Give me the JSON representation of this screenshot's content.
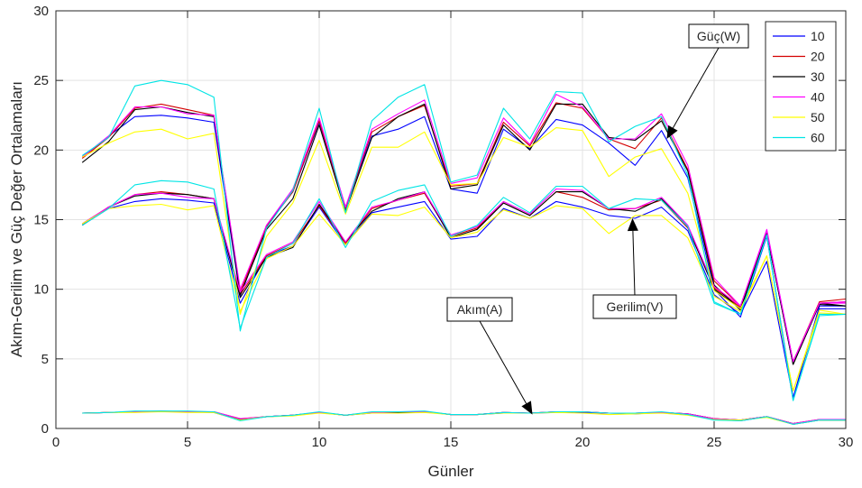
{
  "chart_data": {
    "type": "line",
    "xlabel": "Günler",
    "ylabel": "Akım-Gerilim ve Güç Değer Ortalamaları",
    "xlim": [
      0,
      30
    ],
    "ylim": [
      0,
      30
    ],
    "xticks": [
      0,
      5,
      10,
      15,
      20,
      25,
      30
    ],
    "yticks": [
      0,
      5,
      10,
      15,
      20,
      25,
      30
    ],
    "grid": true,
    "legend_position": "top-right",
    "x": [
      1,
      2,
      3,
      4,
      5,
      6,
      7,
      8,
      9,
      10,
      11,
      12,
      13,
      14,
      15,
      16,
      17,
      18,
      19,
      20,
      21,
      22,
      23,
      24,
      25,
      26,
      27,
      28,
      29,
      30
    ],
    "series": [
      {
        "name": "10",
        "color": "#0000ff",
        "power": [
          19.5,
          21.0,
          22.4,
          22.5,
          22.3,
          22.0,
          9.5,
          14.6,
          17.0,
          22.0,
          15.9,
          21.0,
          21.5,
          22.4,
          17.2,
          16.9,
          21.5,
          20.1,
          22.2,
          21.8,
          20.5,
          18.9,
          21.4,
          18.0,
          10.0,
          8.0,
          13.8,
          2.2,
          8.8,
          8.8
        ],
        "voltage": [
          14.6,
          15.8,
          16.3,
          16.5,
          16.4,
          16.2,
          9.0,
          12.4,
          13.1,
          15.9,
          13.2,
          15.5,
          15.9,
          16.3,
          13.6,
          13.8,
          15.8,
          15.1,
          16.3,
          15.9,
          15.3,
          15.1,
          15.9,
          14.2,
          9.6,
          8.2,
          12.0,
          2.2,
          8.6,
          8.6
        ],
        "current": [
          1.1,
          1.15,
          1.2,
          1.2,
          1.2,
          1.15,
          0.6,
          0.85,
          0.95,
          1.15,
          0.95,
          1.1,
          1.15,
          1.2,
          1.0,
          1.0,
          1.1,
          1.1,
          1.15,
          1.15,
          1.1,
          1.05,
          1.15,
          1.0,
          0.65,
          0.55,
          0.85,
          0.3,
          0.6,
          0.6
        ]
      },
      {
        "name": "20",
        "color": "#d40000",
        "power": [
          19.4,
          20.9,
          23.0,
          23.3,
          22.9,
          22.5,
          9.8,
          14.5,
          17.0,
          22.1,
          15.8,
          21.3,
          22.4,
          23.2,
          17.4,
          17.6,
          22.0,
          20.3,
          23.4,
          23.0,
          20.8,
          20.1,
          22.3,
          18.6,
          10.6,
          8.8,
          14.0,
          4.8,
          9.1,
          9.3
        ],
        "voltage": [
          14.7,
          15.9,
          16.8,
          17.0,
          16.8,
          16.5,
          9.6,
          12.4,
          13.3,
          16.0,
          13.3,
          15.8,
          16.4,
          16.9,
          13.8,
          14.4,
          16.2,
          15.3,
          17.0,
          16.6,
          15.7,
          15.8,
          16.4,
          14.4,
          10.1,
          8.7,
          14.0,
          4.8,
          9.0,
          9.1
        ],
        "current": [
          1.1,
          1.15,
          1.2,
          1.25,
          1.2,
          1.2,
          0.7,
          0.85,
          0.95,
          1.15,
          0.95,
          1.15,
          1.2,
          1.2,
          1.0,
          1.0,
          1.15,
          1.1,
          1.2,
          1.2,
          1.1,
          1.1,
          1.15,
          1.05,
          0.7,
          0.6,
          0.85,
          0.35,
          0.65,
          0.65
        ]
      },
      {
        "name": "30",
        "color": "#000000",
        "power": [
          19.1,
          20.6,
          22.9,
          23.1,
          22.7,
          22.4,
          9.6,
          14.3,
          16.5,
          21.8,
          15.6,
          20.9,
          22.4,
          23.3,
          17.2,
          17.5,
          21.8,
          20.0,
          23.3,
          23.3,
          20.9,
          20.7,
          22.1,
          18.5,
          10.3,
          8.5,
          14.0,
          4.6,
          9.0,
          8.8
        ],
        "voltage": [
          14.6,
          15.9,
          16.7,
          16.9,
          16.8,
          16.5,
          9.4,
          12.3,
          13.0,
          16.1,
          13.4,
          15.6,
          16.5,
          17.0,
          13.7,
          14.3,
          16.2,
          15.3,
          17.0,
          17.0,
          15.8,
          15.6,
          16.5,
          14.5,
          10.0,
          8.6,
          14.0,
          4.6,
          8.9,
          8.8
        ],
        "current": [
          1.1,
          1.15,
          1.2,
          1.2,
          1.2,
          1.2,
          0.65,
          0.85,
          0.95,
          1.15,
          0.95,
          1.15,
          1.15,
          1.2,
          1.0,
          1.0,
          1.15,
          1.1,
          1.2,
          1.2,
          1.1,
          1.1,
          1.15,
          1.05,
          0.7,
          0.6,
          0.85,
          0.35,
          0.6,
          0.6
        ]
      },
      {
        "name": "40",
        "color": "#ff00ff",
        "power": [
          19.5,
          21.0,
          23.1,
          23.1,
          22.6,
          22.5,
          10.0,
          14.6,
          17.2,
          22.3,
          15.9,
          21.5,
          22.6,
          23.6,
          17.6,
          18.0,
          22.3,
          20.4,
          24.0,
          23.1,
          20.8,
          20.8,
          22.6,
          18.9,
          10.8,
          8.8,
          14.3,
          4.8,
          9.0,
          9.1
        ],
        "voltage": [
          14.7,
          15.9,
          16.8,
          16.9,
          16.6,
          16.5,
          9.8,
          12.5,
          13.4,
          16.3,
          13.4,
          15.9,
          16.4,
          17.0,
          13.9,
          14.5,
          16.3,
          15.4,
          17.2,
          17.1,
          15.8,
          15.8,
          16.6,
          14.6,
          10.2,
          8.8,
          14.2,
          4.8,
          9.0,
          9.0
        ],
        "current": [
          1.1,
          1.15,
          1.2,
          1.2,
          1.2,
          1.2,
          0.7,
          0.85,
          0.95,
          1.15,
          0.95,
          1.15,
          1.2,
          1.2,
          1.0,
          1.0,
          1.15,
          1.1,
          1.2,
          1.2,
          1.1,
          1.1,
          1.15,
          1.05,
          0.7,
          0.6,
          0.85,
          0.35,
          0.65,
          0.65
        ]
      },
      {
        "name": "50",
        "color": "#ffff00",
        "power": [
          19.5,
          20.5,
          21.3,
          21.5,
          20.8,
          21.2,
          8.2,
          13.8,
          16.2,
          20.7,
          15.4,
          20.2,
          20.2,
          21.3,
          17.5,
          17.6,
          20.9,
          20.2,
          21.6,
          21.4,
          18.1,
          19.5,
          20.1,
          16.9,
          9.9,
          8.6,
          12.4,
          2.7,
          8.5,
          8.2
        ],
        "voltage": [
          14.7,
          15.8,
          16.0,
          16.1,
          15.7,
          16.0,
          8.4,
          12.2,
          13.1,
          15.4,
          13.2,
          15.4,
          15.3,
          15.9,
          13.7,
          14.1,
          15.7,
          15.1,
          16.0,
          15.8,
          14.0,
          15.3,
          15.3,
          13.7,
          9.5,
          8.4,
          12.4,
          2.7,
          8.3,
          8.2
        ],
        "current": [
          1.1,
          1.15,
          1.15,
          1.2,
          1.15,
          1.15,
          0.6,
          0.85,
          0.9,
          1.1,
          0.95,
          1.1,
          1.1,
          1.15,
          1.0,
          1.0,
          1.1,
          1.1,
          1.15,
          1.1,
          1.0,
          1.05,
          1.1,
          0.95,
          0.65,
          0.6,
          0.8,
          0.3,
          0.6,
          0.6
        ]
      },
      {
        "name": "60",
        "color": "#00e5e5",
        "power": [
          19.6,
          20.9,
          24.6,
          25.0,
          24.7,
          23.8,
          7.0,
          14.4,
          17.1,
          23.0,
          15.5,
          22.1,
          23.8,
          24.7,
          17.7,
          18.2,
          23.0,
          20.8,
          24.2,
          24.1,
          20.6,
          21.7,
          22.4,
          18.2,
          9.1,
          8.2,
          13.9,
          2.0,
          8.1,
          8.2
        ],
        "voltage": [
          14.6,
          15.8,
          17.5,
          17.8,
          17.7,
          17.2,
          7.2,
          12.3,
          13.3,
          16.5,
          13.0,
          16.3,
          17.1,
          17.5,
          13.8,
          14.6,
          16.6,
          15.5,
          17.4,
          17.4,
          15.8,
          16.5,
          16.4,
          14.5,
          9.0,
          8.2,
          13.9,
          2.0,
          8.2,
          8.2
        ],
        "current": [
          1.1,
          1.15,
          1.25,
          1.25,
          1.25,
          1.2,
          0.55,
          0.85,
          0.95,
          1.2,
          0.95,
          1.2,
          1.2,
          1.25,
          1.0,
          1.0,
          1.15,
          1.1,
          1.2,
          1.2,
          1.1,
          1.1,
          1.2,
          1.0,
          0.6,
          0.55,
          0.85,
          0.3,
          0.6,
          0.6
        ]
      }
    ],
    "annotations": [
      {
        "text": "Güç(W)",
        "arrow_to": [
          23.2,
          20.8
        ]
      },
      {
        "text": "Gerilim(V)",
        "arrow_to": [
          21.9,
          15.1
        ]
      },
      {
        "text": "Akım(A)",
        "arrow_to": [
          18.1,
          1.0
        ]
      }
    ]
  }
}
